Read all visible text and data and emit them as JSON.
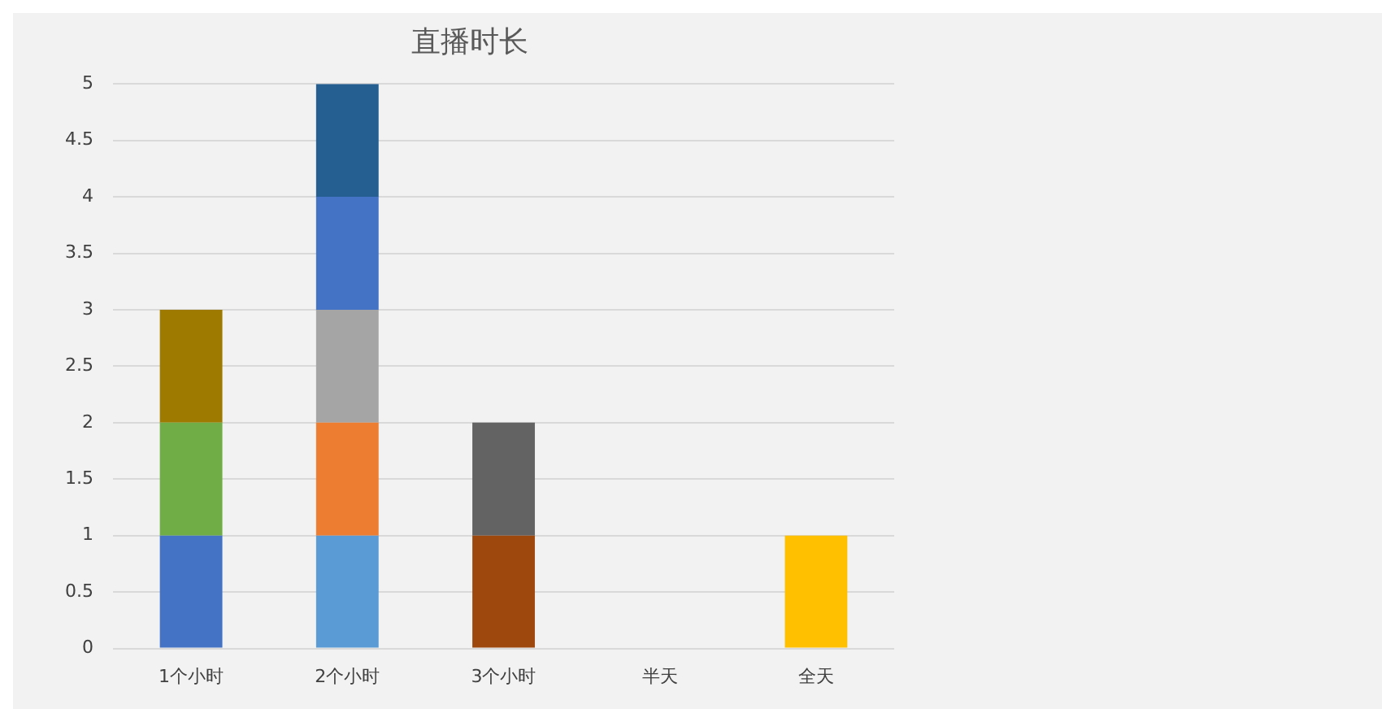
{
  "chart_data": {
    "type": "bar",
    "title": "直播时长",
    "categories": [
      "1个小时",
      "2个小时",
      "3个小时",
      "半天",
      "全天"
    ],
    "stacked": true,
    "series": [
      {
        "values": [
          1,
          1,
          1,
          null,
          1
        ],
        "colors": [
          "#4472c4",
          "#5b9bd5",
          "#9e480e",
          "#ffffff",
          "#ffc000"
        ]
      },
      {
        "values": [
          1,
          1,
          1,
          null,
          null
        ],
        "colors": [
          "#70ad47",
          "#ed7d31",
          "#636363",
          "#ffffff",
          "#ffffff"
        ]
      },
      {
        "values": [
          1,
          1,
          null,
          null,
          null
        ],
        "colors": [
          "#9e7b00",
          "#a5a5a5",
          "#ffffff",
          "#ffffff",
          "#ffffff"
        ]
      },
      {
        "values": [
          null,
          1,
          null,
          null,
          null
        ],
        "colors": [
          "#ffffff",
          "#4472c4",
          "#ffffff",
          "#ffffff",
          "#ffffff"
        ]
      },
      {
        "values": [
          null,
          1,
          null,
          null,
          null
        ],
        "colors": [
          "#ffffff",
          "#255e91",
          "#ffffff",
          "#ffffff",
          "#ffffff"
        ]
      }
    ],
    "ylim": [
      0,
      5
    ],
    "yticks": [
      0,
      0.5,
      1,
      1.5,
      2,
      2.5,
      3,
      3.5,
      4,
      4.5,
      5
    ],
    "grid": "y",
    "legend": false
  }
}
